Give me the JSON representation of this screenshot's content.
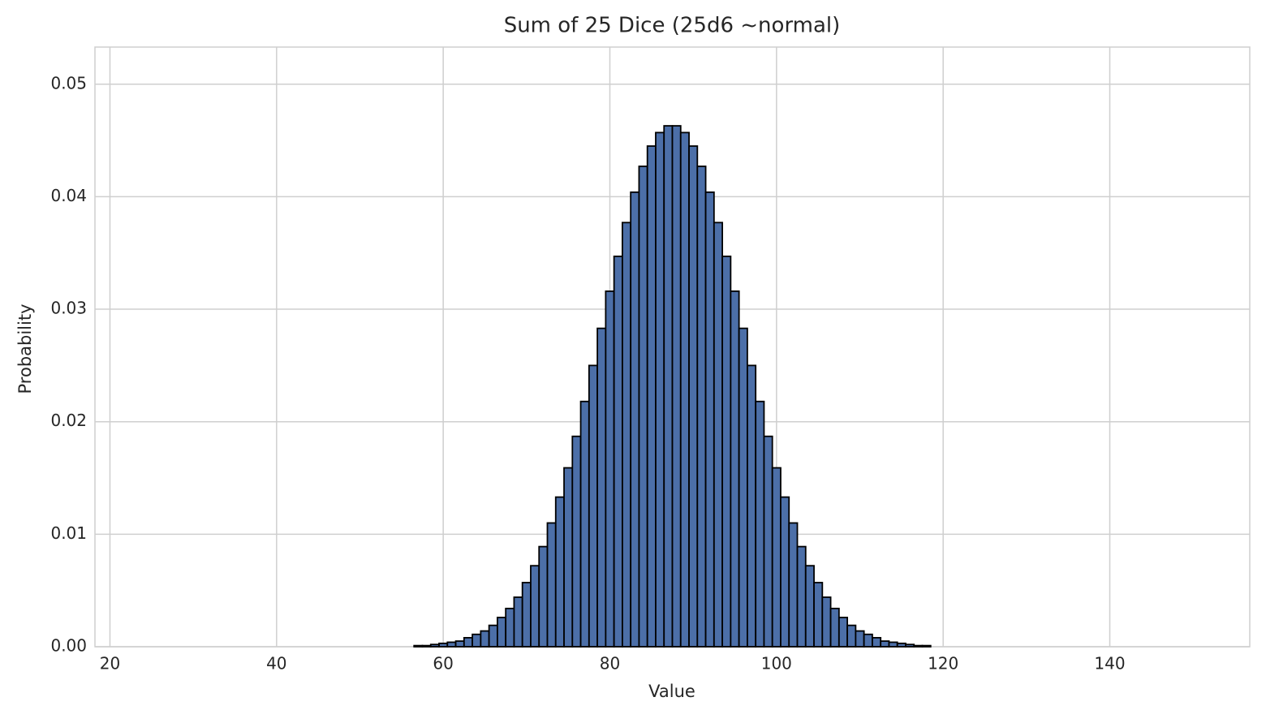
{
  "chart_data": {
    "type": "bar",
    "title": "Sum of 25 Dice (25d6 ~normal)",
    "x_label": "Value",
    "y_label": "Probability",
    "x": [
      57,
      58,
      59,
      60,
      61,
      62,
      63,
      64,
      65,
      66,
      67,
      68,
      69,
      70,
      71,
      72,
      73,
      74,
      75,
      76,
      77,
      78,
      79,
      80,
      81,
      82,
      83,
      84,
      85,
      86,
      87,
      88,
      89,
      90,
      91,
      92,
      93,
      94,
      95,
      96,
      97,
      98,
      99,
      100,
      101,
      102,
      103,
      104,
      105,
      106,
      107,
      108,
      109,
      110,
      111,
      112,
      113,
      114,
      115,
      116,
      117,
      118
    ],
    "values": [
      0.0001,
      0.0001,
      0.0002,
      0.0003,
      0.0004,
      0.0005,
      0.0008,
      0.0011,
      0.0014,
      0.0019,
      0.0026,
      0.0034,
      0.0044,
      0.0057,
      0.0072,
      0.0089,
      0.011,
      0.0133,
      0.0159,
      0.0187,
      0.0218,
      0.025,
      0.0283,
      0.0316,
      0.0347,
      0.0377,
      0.0404,
      0.0427,
      0.0445,
      0.0457,
      0.0463,
      0.0463,
      0.0457,
      0.0445,
      0.0427,
      0.0404,
      0.0377,
      0.0347,
      0.0316,
      0.0283,
      0.025,
      0.0218,
      0.0187,
      0.0159,
      0.0133,
      0.011,
      0.0089,
      0.0072,
      0.0057,
      0.0044,
      0.0034,
      0.0026,
      0.0019,
      0.0014,
      0.0011,
      0.0008,
      0.0005,
      0.0004,
      0.0003,
      0.0002,
      0.0001,
      0.0001
    ],
    "color": "#4c6fa8",
    "edgecolor": "#000000",
    "xlim": [
      18.2,
      156.8
    ],
    "xticks": [
      20,
      40,
      60,
      80,
      100,
      120,
      140
    ],
    "ylim": [
      0,
      0.0533
    ],
    "yticks": [
      {
        "value": 0,
        "label": "0.00"
      },
      0.01,
      0.02,
      0.03,
      0.04,
      0.05
    ],
    "grid": true
  }
}
